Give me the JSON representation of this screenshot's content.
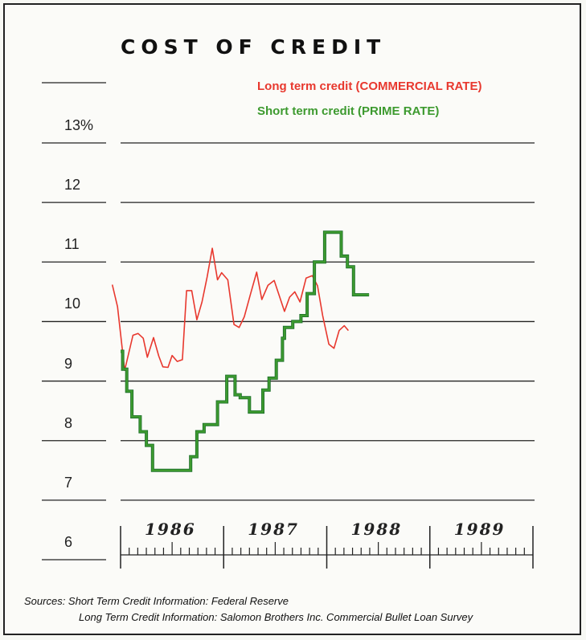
{
  "chart_data": {
    "type": "line",
    "title": "COST OF CREDIT",
    "y_ticks": [
      "13%",
      "12",
      "11",
      "10",
      "9",
      "8",
      "7",
      "6"
    ],
    "ylim": [
      6,
      13
    ],
    "x_years": [
      "1986",
      "1987",
      "1988",
      "1989"
    ],
    "xlim": [
      1986.0,
      1990.0
    ],
    "grid": true,
    "legend_position": "top-right",
    "series": [
      {
        "name": "Long term credit (COMMERCIAL RATE)",
        "color": "#e8382e",
        "style": "line",
        "points": [
          [
            1985.92,
            10.62
          ],
          [
            1985.97,
            10.25
          ],
          [
            1986.04,
            9.18
          ],
          [
            1986.12,
            9.77
          ],
          [
            1986.17,
            9.8
          ],
          [
            1986.22,
            9.72
          ],
          [
            1986.26,
            9.4
          ],
          [
            1986.32,
            9.73
          ],
          [
            1986.37,
            9.42
          ],
          [
            1986.41,
            9.24
          ],
          [
            1986.46,
            9.23
          ],
          [
            1986.5,
            9.43
          ],
          [
            1986.55,
            9.33
          ],
          [
            1986.6,
            9.36
          ],
          [
            1986.64,
            10.52
          ],
          [
            1986.69,
            10.52
          ],
          [
            1986.74,
            10.03
          ],
          [
            1986.79,
            10.33
          ],
          [
            1986.84,
            10.75
          ],
          [
            1986.89,
            11.23
          ],
          [
            1986.94,
            10.7
          ],
          [
            1986.98,
            10.82
          ],
          [
            1987.04,
            10.7
          ],
          [
            1987.1,
            9.95
          ],
          [
            1987.15,
            9.9
          ],
          [
            1987.2,
            10.08
          ],
          [
            1987.26,
            10.46
          ],
          [
            1987.32,
            10.83
          ],
          [
            1987.37,
            10.37
          ],
          [
            1987.43,
            10.61
          ],
          [
            1987.49,
            10.69
          ],
          [
            1987.54,
            10.43
          ],
          [
            1987.59,
            10.17
          ],
          [
            1987.64,
            10.41
          ],
          [
            1987.69,
            10.5
          ],
          [
            1987.74,
            10.33
          ],
          [
            1987.8,
            10.73
          ],
          [
            1987.86,
            10.77
          ],
          [
            1987.91,
            10.6
          ],
          [
            1987.96,
            10.1
          ],
          [
            1988.02,
            9.62
          ],
          [
            1988.07,
            9.55
          ],
          [
            1988.12,
            9.85
          ],
          [
            1988.17,
            9.93
          ],
          [
            1988.21,
            9.85
          ]
        ]
      },
      {
        "name": "Short term credit (PRIME RATE)",
        "color": "#3d9a2f",
        "style": "step",
        "points": [
          [
            1986.0,
            9.5
          ],
          [
            1986.02,
            9.5
          ],
          [
            1986.02,
            9.2
          ],
          [
            1986.06,
            9.2
          ],
          [
            1986.06,
            8.83
          ],
          [
            1986.11,
            8.83
          ],
          [
            1986.11,
            8.4
          ],
          [
            1986.19,
            8.4
          ],
          [
            1986.19,
            8.15
          ],
          [
            1986.25,
            8.15
          ],
          [
            1986.25,
            7.92
          ],
          [
            1986.31,
            7.92
          ],
          [
            1986.31,
            7.5
          ],
          [
            1986.68,
            7.5
          ],
          [
            1986.68,
            7.73
          ],
          [
            1986.74,
            7.73
          ],
          [
            1986.74,
            8.15
          ],
          [
            1986.81,
            8.15
          ],
          [
            1986.81,
            8.27
          ],
          [
            1986.94,
            8.27
          ],
          [
            1986.94,
            8.65
          ],
          [
            1987.03,
            8.65
          ],
          [
            1987.03,
            9.08
          ],
          [
            1987.11,
            9.08
          ],
          [
            1987.11,
            8.77
          ],
          [
            1987.16,
            8.77
          ],
          [
            1987.16,
            8.72
          ],
          [
            1987.25,
            8.72
          ],
          [
            1987.25,
            8.48
          ],
          [
            1987.38,
            8.48
          ],
          [
            1987.38,
            8.85
          ],
          [
            1987.44,
            8.85
          ],
          [
            1987.44,
            9.05
          ],
          [
            1987.51,
            9.05
          ],
          [
            1987.51,
            9.35
          ],
          [
            1987.57,
            9.35
          ],
          [
            1987.57,
            9.72
          ],
          [
            1987.59,
            9.72
          ],
          [
            1987.59,
            9.9
          ],
          [
            1987.67,
            9.9
          ],
          [
            1987.67,
            10.0
          ],
          [
            1987.75,
            10.0
          ],
          [
            1987.75,
            10.1
          ],
          [
            1987.81,
            10.1
          ],
          [
            1987.81,
            10.47
          ],
          [
            1987.88,
            10.47
          ],
          [
            1987.88,
            11.0
          ],
          [
            1987.98,
            11.0
          ],
          [
            1987.98,
            11.5
          ],
          [
            1988.14,
            11.5
          ],
          [
            1988.14,
            11.1
          ],
          [
            1988.2,
            11.1
          ],
          [
            1988.2,
            10.92
          ],
          [
            1988.26,
            10.92
          ],
          [
            1988.26,
            10.45
          ],
          [
            1988.41,
            10.45
          ]
        ]
      }
    ]
  },
  "sources": {
    "line1": "Sources: Short Term Credit Information: Federal Reserve",
    "line2": "Long Term Credit Information: Salomon Brothers Inc.  Commercial Bullet Loan Survey"
  }
}
